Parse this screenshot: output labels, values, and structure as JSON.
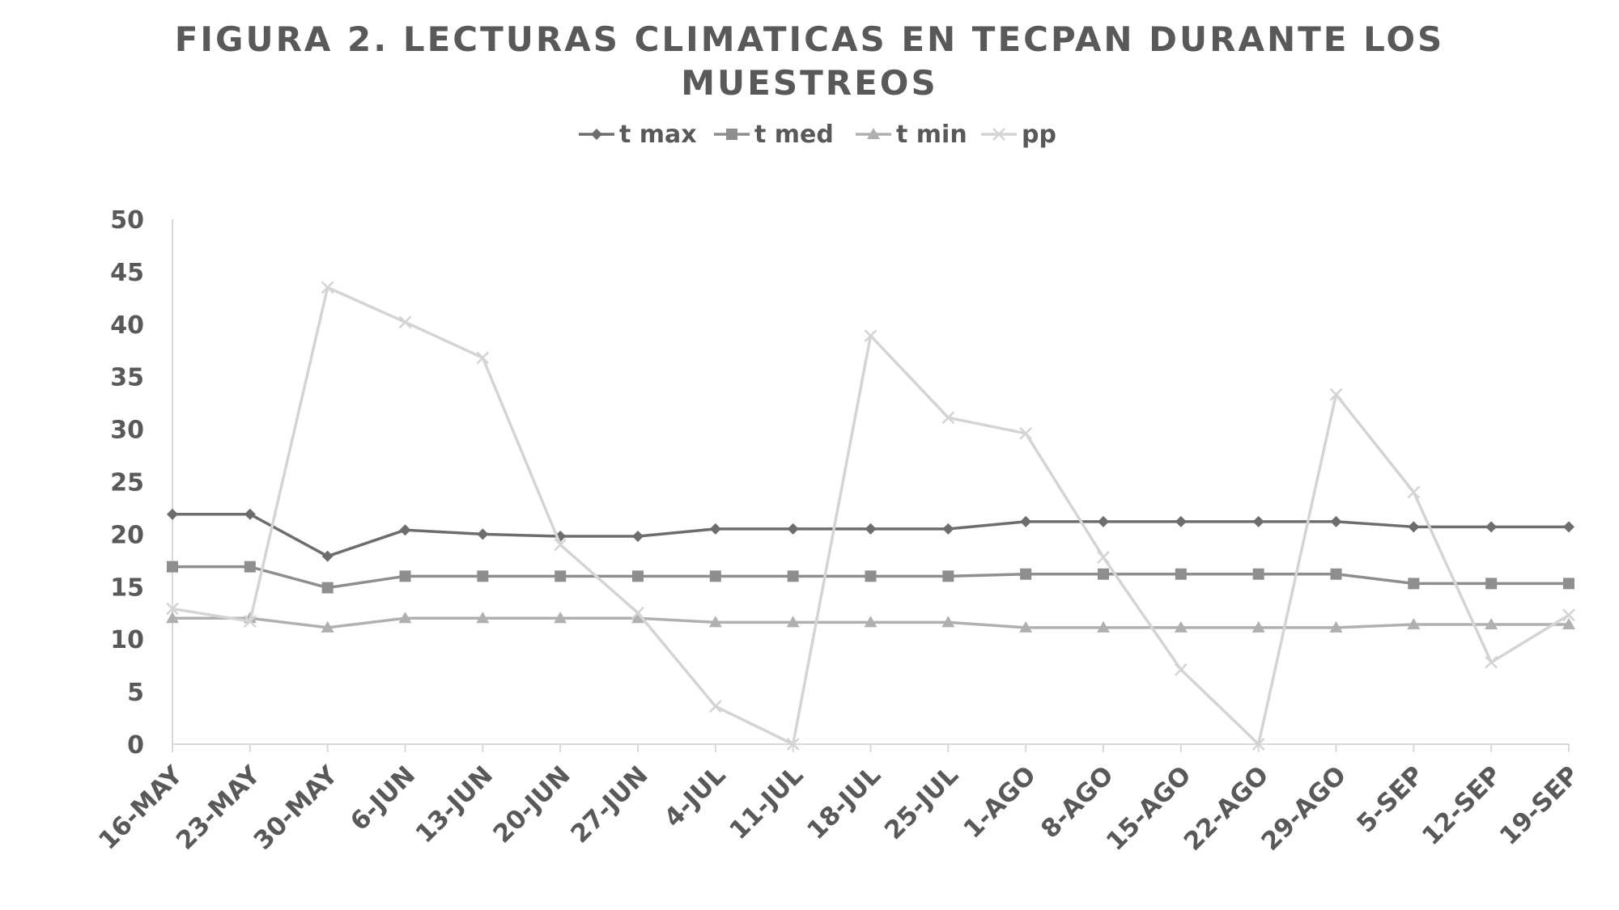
{
  "chart_data": {
    "type": "line",
    "title": "FIGURA 2. LECTURAS CLIMATICAS EN TECPAN DURANTE LOS MUESTREOS",
    "xlabel": "",
    "ylabel": "",
    "ylim": [
      0,
      50
    ],
    "yticks": [
      "0",
      "5",
      "10",
      "15",
      "20",
      "25",
      "30",
      "35",
      "40",
      "45",
      "50"
    ],
    "categories": [
      "16-MAY",
      "23-MAY",
      "30-MAY",
      "6-JUN",
      "13-JUN",
      "20-JUN",
      "27-JUN",
      "4-JUL",
      "11-JUL",
      "18-JUL",
      "25-JUL",
      "1-AGO",
      "8-AGO",
      "15-AGO",
      "22-AGO",
      "29-AGO",
      "5-SEP",
      "12-SEP",
      "19-SEP"
    ],
    "legend_position": "top",
    "grid": false,
    "series": [
      {
        "name": "t max",
        "marker": "diamond",
        "color": "#6d6d6d",
        "values": [
          21.9,
          21.9,
          17.9,
          20.4,
          20.0,
          19.8,
          19.8,
          20.5,
          20.5,
          20.5,
          20.5,
          21.2,
          21.2,
          21.2,
          21.2,
          21.2,
          20.7,
          20.7,
          20.7
        ]
      },
      {
        "name": "t med",
        "marker": "square",
        "color": "#8e8e8e",
        "values": [
          16.9,
          16.9,
          14.9,
          16.0,
          16.0,
          16.0,
          16.0,
          16.0,
          16.0,
          16.0,
          16.0,
          16.2,
          16.2,
          16.2,
          16.2,
          16.2,
          15.3,
          15.3,
          15.3
        ]
      },
      {
        "name": "t min",
        "marker": "triangle",
        "color": "#b0b0b0",
        "values": [
          12.0,
          12.0,
          11.1,
          12.0,
          12.0,
          12.0,
          12.0,
          11.6,
          11.6,
          11.6,
          11.6,
          11.1,
          11.1,
          11.1,
          11.1,
          11.1,
          11.4,
          11.4,
          11.4
        ]
      },
      {
        "name": "pp",
        "marker": "x",
        "color": "#d4d4d4",
        "values": [
          12.9,
          11.7,
          43.5,
          40.2,
          36.8,
          19.0,
          12.5,
          3.6,
          0.0,
          38.9,
          31.1,
          29.6,
          17.8,
          7.1,
          0.0,
          33.3,
          24.0,
          7.8,
          12.3
        ]
      }
    ]
  }
}
